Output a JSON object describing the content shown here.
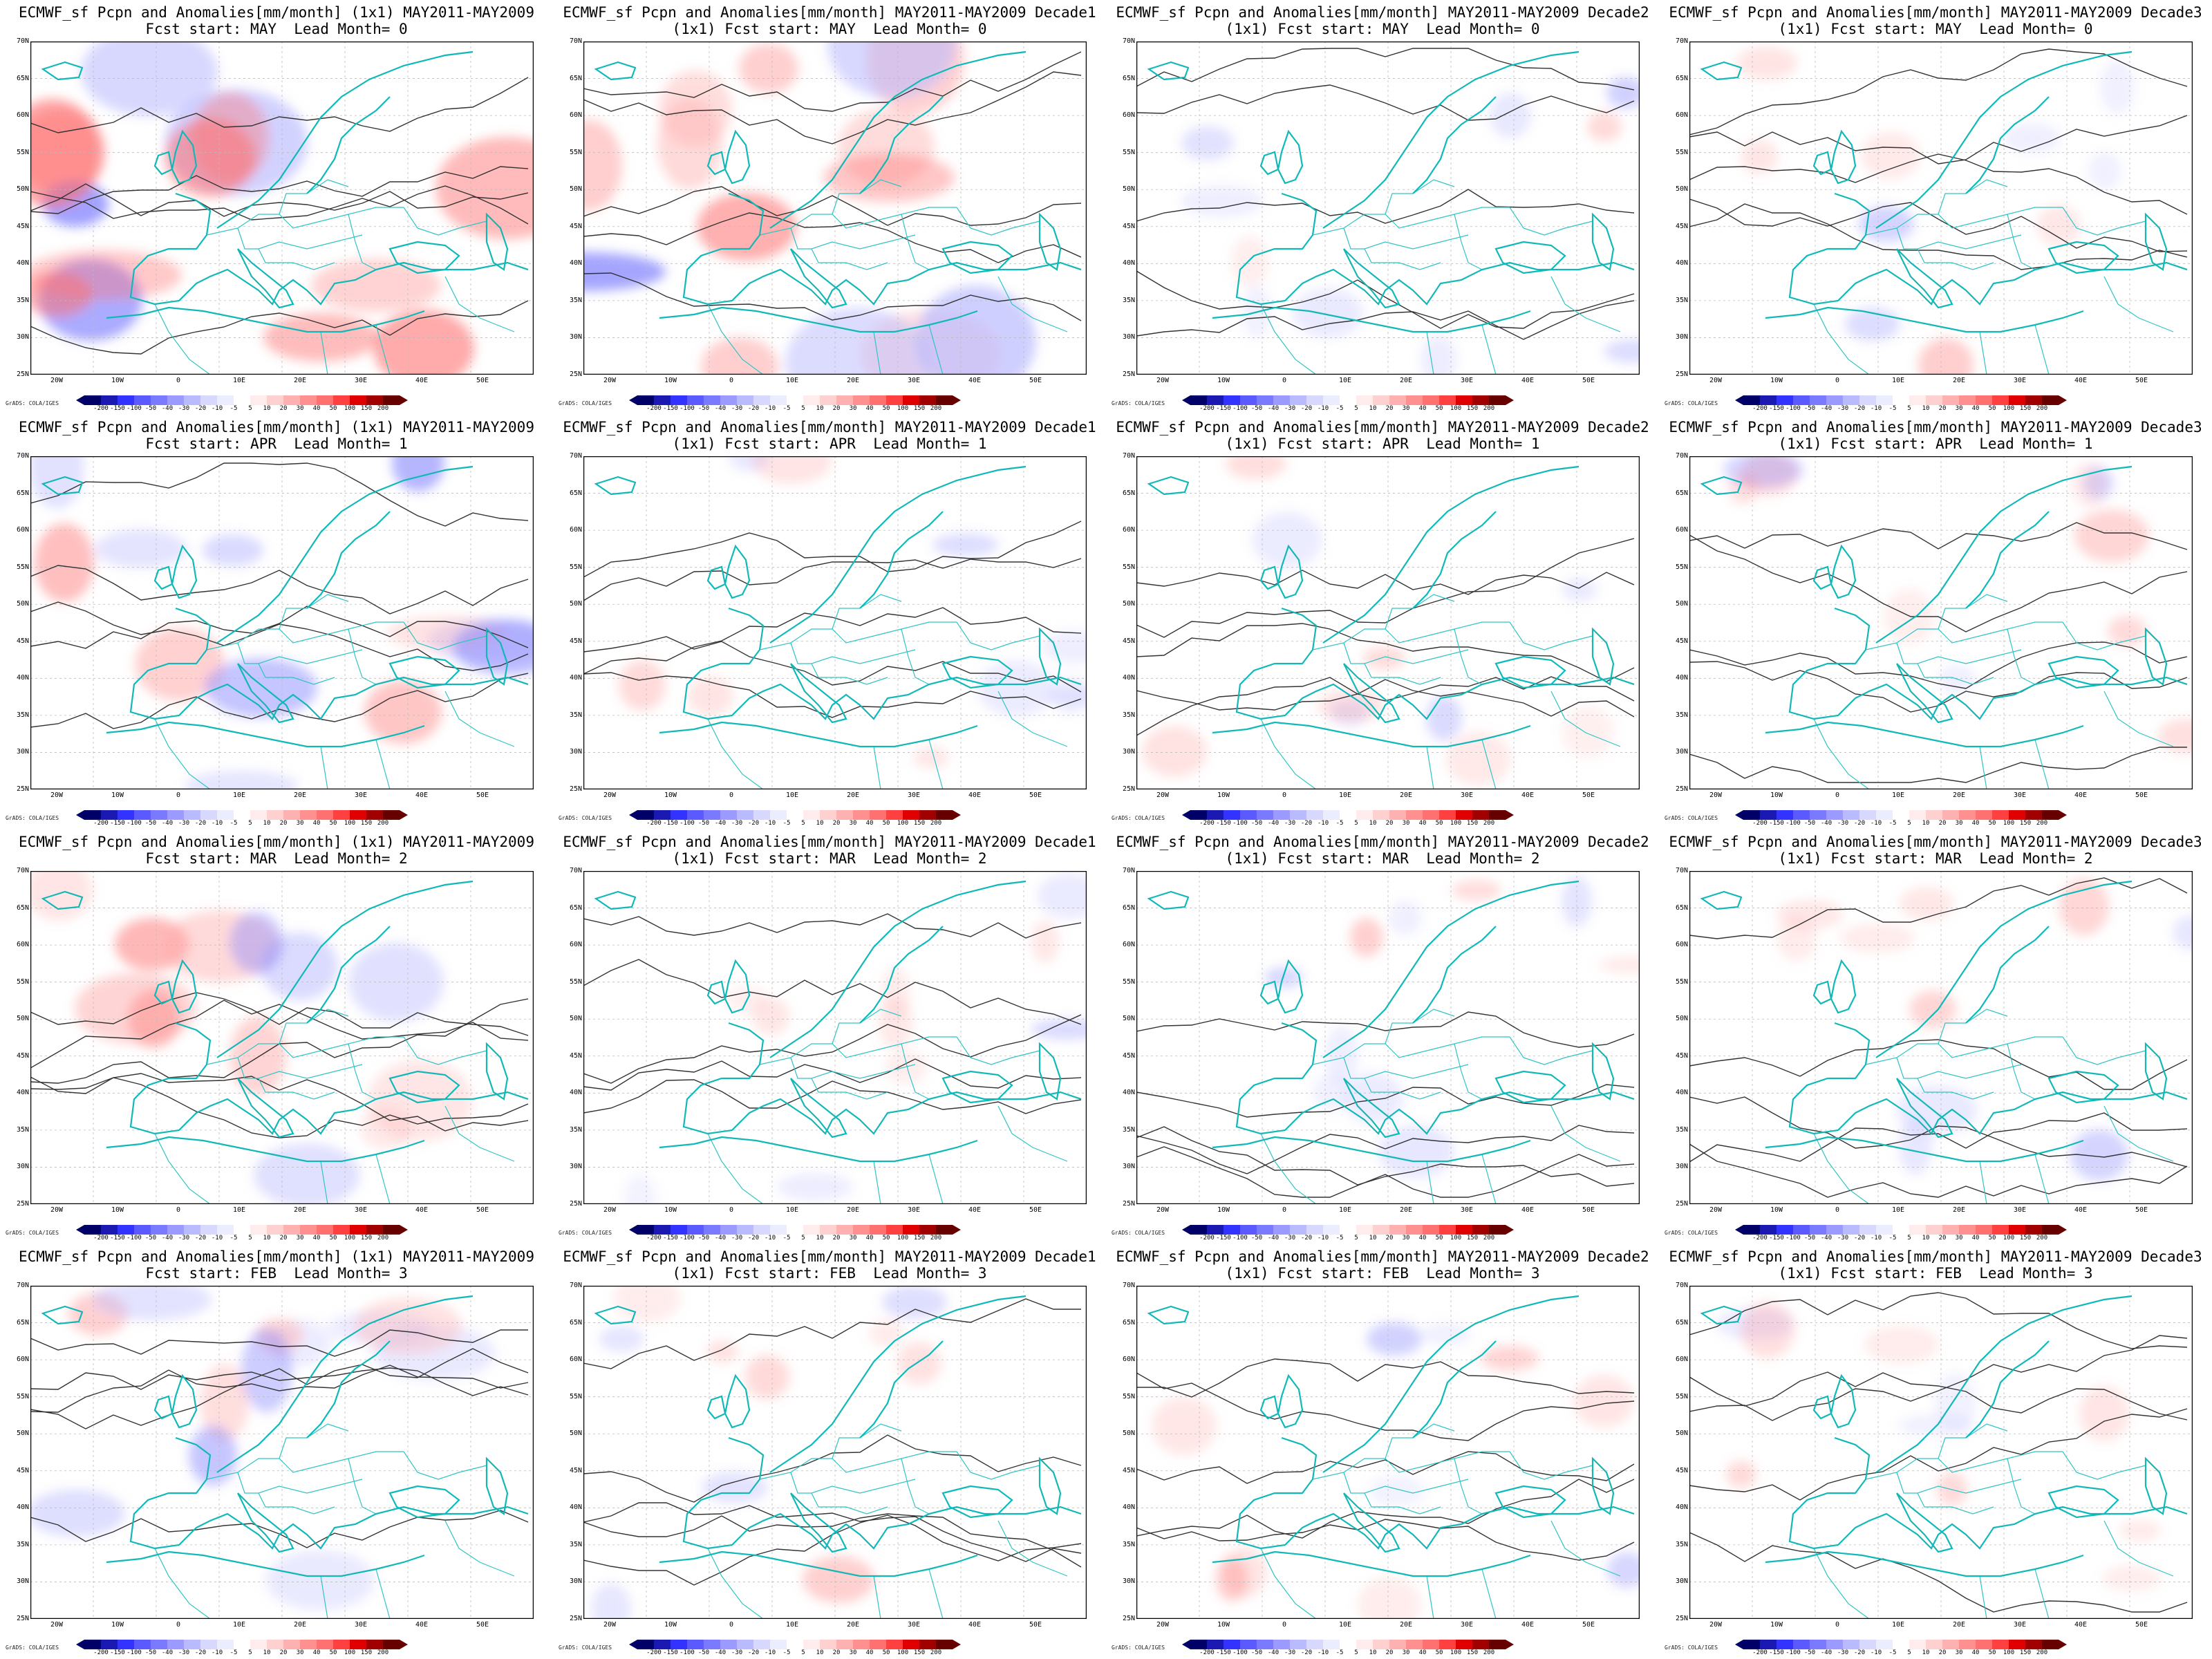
{
  "colorbar": {
    "credit": "GrADS: COLA/IGES",
    "labels": [
      "-200",
      "-150",
      "-100",
      "-50",
      "-40",
      "-30",
      "-20",
      "-10",
      "-5",
      "5",
      "10",
      "20",
      "30",
      "40",
      "50",
      "100",
      "150",
      "200"
    ],
    "colors": [
      "#000066",
      "#1a1ab3",
      "#3333ff",
      "#5a5aff",
      "#7a7aff",
      "#9a9aff",
      "#babaff",
      "#d8d8ff",
      "#ececff",
      "#ffffff",
      "#ffecec",
      "#ffd0d0",
      "#ffb0b0",
      "#ff9090",
      "#ff7070",
      "#ff4040",
      "#e00000",
      "#a00000",
      "#660000"
    ]
  },
  "axes": {
    "lat_labels": [
      "70N",
      "65N",
      "60N",
      "55N",
      "50N",
      "45N",
      "40N",
      "35N",
      "30N",
      "25N"
    ],
    "lon_labels": [
      "20W",
      "10W",
      "0",
      "10E",
      "20E",
      "30E",
      "40E",
      "50E"
    ]
  },
  "panels": [
    {
      "line1": "ECMWF_sf Pcpn and Anomalies[mm/month] (1x1) MAY2011-MAY2009",
      "line2": "Fcst start: MAY  Lead Month= 0",
      "anom": "strong"
    },
    {
      "line1": "ECMWF_sf Pcpn and Anomalies[mm/month] MAY2011-MAY2009 Decade1",
      "line2": "(1x1) Fcst start: MAY  Lead Month= 0",
      "anom": "strong"
    },
    {
      "line1": "ECMWF_sf Pcpn and Anomalies[mm/month] MAY2011-MAY2009 Decade2",
      "line2": "(1x1) Fcst start: MAY  Lead Month= 0",
      "anom": "weak"
    },
    {
      "line1": "ECMWF_sf Pcpn and Anomalies[mm/month] MAY2011-MAY2009 Decade3",
      "line2": "(1x1) Fcst start: MAY  Lead Month= 0",
      "anom": "weak"
    },
    {
      "line1": "ECMWF_sf Pcpn and Anomalies[mm/month] (1x1) MAY2011-MAY2009",
      "line2": "Fcst start: APR  Lead Month= 1",
      "anom": "medium"
    },
    {
      "line1": "ECMWF_sf Pcpn and Anomalies[mm/month] MAY2011-MAY2009 Decade1",
      "line2": "(1x1) Fcst start: APR  Lead Month= 1",
      "anom": "weak"
    },
    {
      "line1": "ECMWF_sf Pcpn and Anomalies[mm/month] MAY2011-MAY2009 Decade2",
      "line2": "(1x1) Fcst start: APR  Lead Month= 1",
      "anom": "weak"
    },
    {
      "line1": "ECMWF_sf Pcpn and Anomalies[mm/month] MAY2011-MAY2009 Decade3",
      "line2": "(1x1) Fcst start: APR  Lead Month= 1",
      "anom": "weak"
    },
    {
      "line1": "ECMWF_sf Pcpn and Anomalies[mm/month] (1x1) MAY2011-MAY2009",
      "line2": "Fcst start: MAR  Lead Month= 2",
      "anom": "medium"
    },
    {
      "line1": "ECMWF_sf Pcpn and Anomalies[mm/month] MAY2011-MAY2009 Decade1",
      "line2": "(1x1) Fcst start: MAR  Lead Month= 2",
      "anom": "weak"
    },
    {
      "line1": "ECMWF_sf Pcpn and Anomalies[mm/month] MAY2011-MAY2009 Decade2",
      "line2": "(1x1) Fcst start: MAR  Lead Month= 2",
      "anom": "weak"
    },
    {
      "line1": "ECMWF_sf Pcpn and Anomalies[mm/month] MAY2011-MAY2009 Decade3",
      "line2": "(1x1) Fcst start: MAR  Lead Month= 2",
      "anom": "weak"
    },
    {
      "line1": "ECMWF_sf Pcpn and Anomalies[mm/month] (1x1) MAY2011-MAY2009",
      "line2": "Fcst start: FEB  Lead Month= 3",
      "anom": "medium"
    },
    {
      "line1": "ECMWF_sf Pcpn and Anomalies[mm/month] MAY2011-MAY2009 Decade1",
      "line2": "(1x1) Fcst start: FEB  Lead Month= 3",
      "anom": "weak"
    },
    {
      "line1": "ECMWF_sf Pcpn and Anomalies[mm/month] MAY2011-MAY2009 Decade2",
      "line2": "(1x1) Fcst start: FEB  Lead Month= 3",
      "anom": "weak"
    },
    {
      "line1": "ECMWF_sf Pcpn and Anomalies[mm/month] MAY2011-MAY2009 Decade3",
      "line2": "(1x1) Fcst start: FEB  Lead Month= 3",
      "anom": "weak"
    }
  ]
}
